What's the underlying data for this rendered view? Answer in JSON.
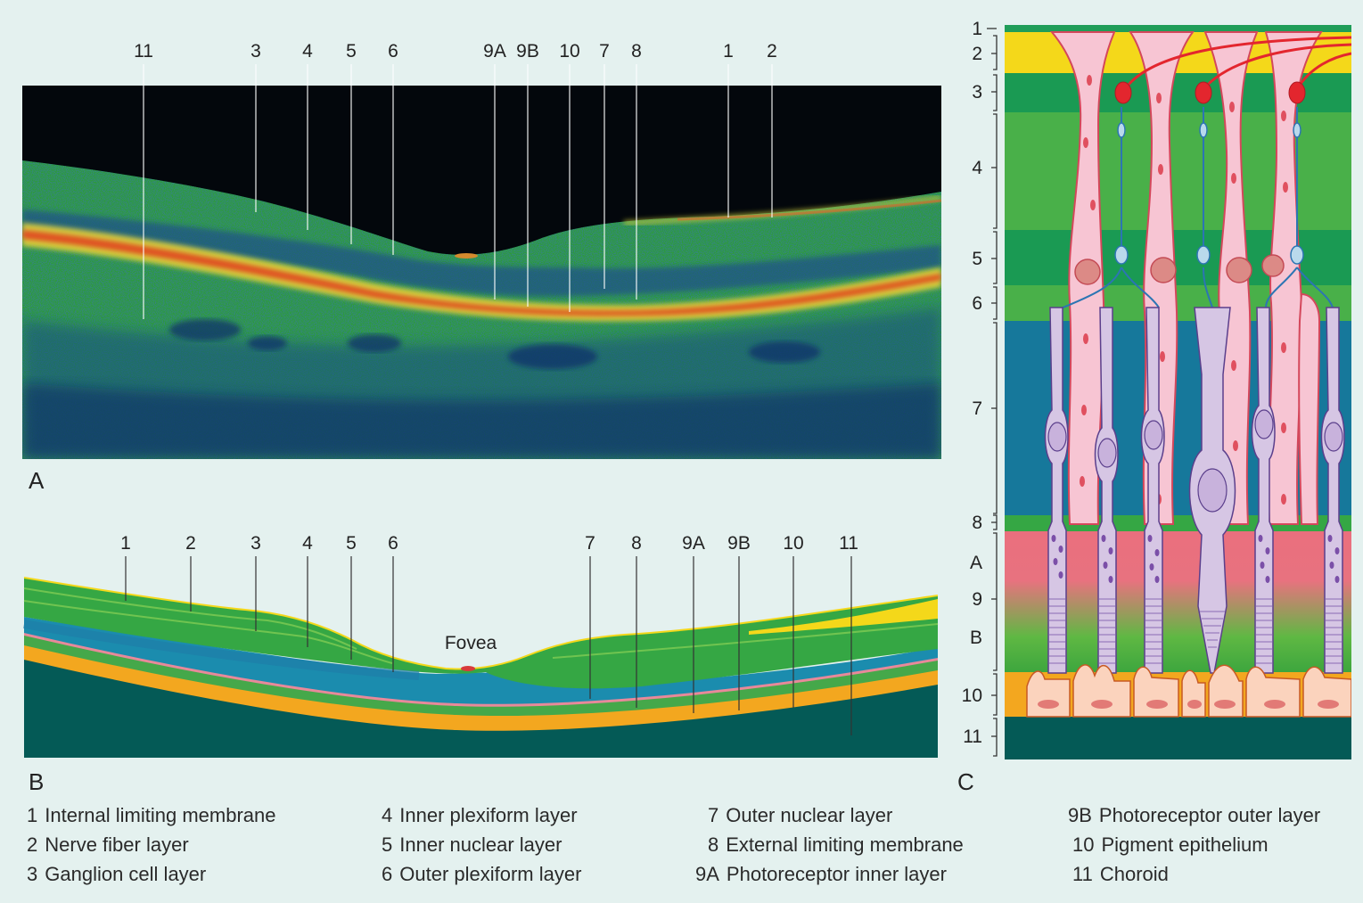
{
  "panels": {
    "a": {
      "letter": "A",
      "labels": [
        "11",
        "3",
        "4",
        "5",
        "6",
        "9A",
        "9B",
        "10",
        "7",
        "8",
        "1",
        "2"
      ]
    },
    "b": {
      "letter": "B",
      "labels": [
        "1",
        "2",
        "3",
        "4",
        "5",
        "6",
        "7",
        "8",
        "9A",
        "9B",
        "10",
        "11"
      ],
      "fovea_label": "Fovea"
    },
    "c": {
      "letter": "C",
      "scale_labels": [
        "1",
        "2",
        "3",
        "4",
        "5",
        "6",
        "7",
        "8",
        "A",
        "9",
        "B",
        "10",
        "11"
      ]
    }
  },
  "legend": [
    {
      "num": "1",
      "text": "Internal limiting membrane"
    },
    {
      "num": "2",
      "text": "Nerve fiber layer"
    },
    {
      "num": "3",
      "text": "Ganglion cell layer"
    },
    {
      "num": "4",
      "text": "Inner plexiform layer"
    },
    {
      "num": "5",
      "text": "Inner nuclear layer"
    },
    {
      "num": "6",
      "text": "Outer plexiform layer"
    },
    {
      "num": "7",
      "text": "Outer nuclear layer"
    },
    {
      "num": "8",
      "text": "External limiting membrane"
    },
    {
      "num": "9A",
      "text": "Photoreceptor inner layer"
    },
    {
      "num": "9B",
      "text": "Photoreceptor outer layer"
    },
    {
      "num": "10",
      "text": "Pigment epithelium"
    },
    {
      "num": "11",
      "text": "Choroid"
    }
  ],
  "colors": {
    "background": "#e4f1ef",
    "oct_black": "#03070c",
    "oct_green": "#2e9a3c",
    "oct_yellow": "#e9d93a",
    "oct_red": "#e23a1e",
    "oct_blue": "#17407a",
    "choroid": "#045a56",
    "layer_blue": "#1b8cae",
    "rpe_orange": "#f3a71f",
    "nerve_yellow": "#f4d81a",
    "muller_pink": "#f7c5d3",
    "cell_lavender": "#d6c6e4",
    "axon_red": "#e3262e"
  }
}
